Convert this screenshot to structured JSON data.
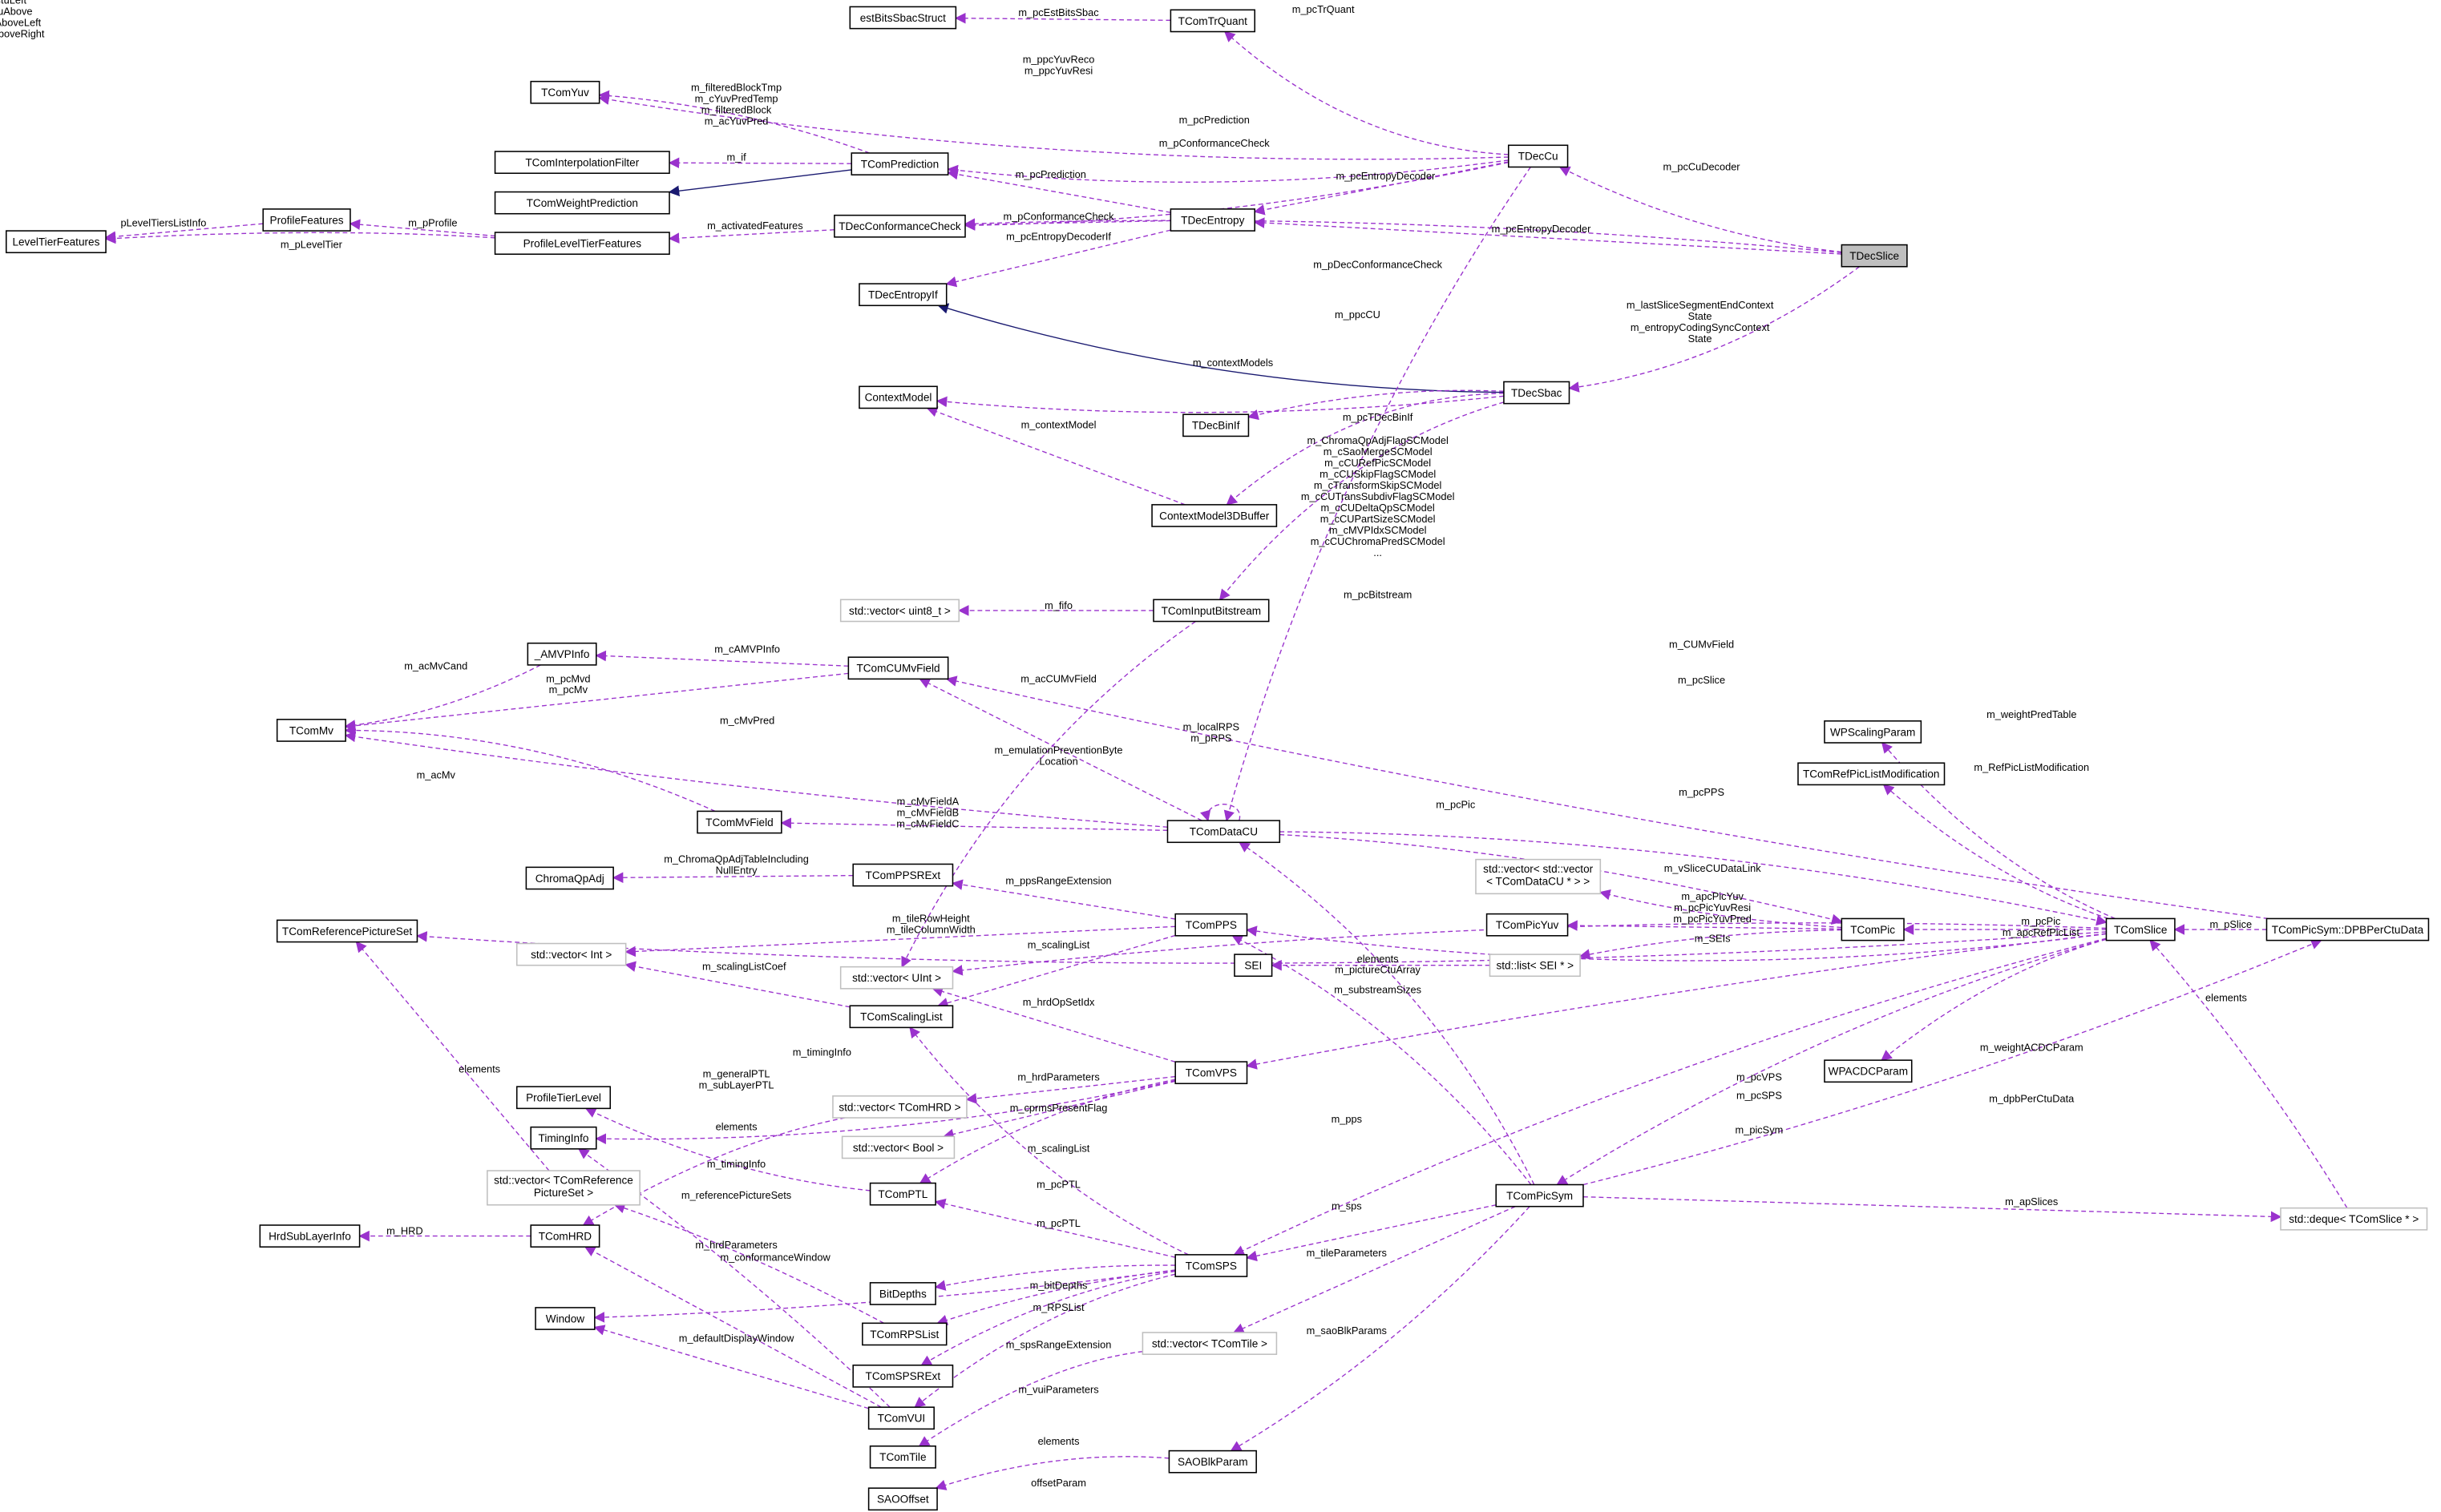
{
  "colors": {
    "member_edge": "#9a32cd",
    "inherit_edge": "#191970",
    "focus_node_fill": "#bfbfbf",
    "external_node_border": "#bfbfbf"
  },
  "nodes": [
    {
      "name": "estBitsSbacStruct"
    },
    {
      "name": "TComTrQuant"
    },
    {
      "name": "TComYuv"
    },
    {
      "name": "TComInterpolationFilter"
    },
    {
      "name": "TComPrediction"
    },
    {
      "name": "TComWeightPrediction"
    },
    {
      "name": "TDecCu"
    },
    {
      "name": "ProfileFeatures"
    },
    {
      "name": "LevelTierFeatures"
    },
    {
      "name": "ProfileLevelTierFeatures"
    },
    {
      "name": "TDecConformanceCheck"
    },
    {
      "name": "TDecEntropy"
    },
    {
      "name": "TDecSlice",
      "focus": true
    },
    {
      "name": "TDecEntropyIf"
    },
    {
      "name": "ContextModel"
    },
    {
      "name": "TDecSbac"
    },
    {
      "name": "TDecBinIf"
    },
    {
      "name": "ContextModel3DBuffer"
    },
    {
      "name": "std::vector< uint8_t >",
      "external": true
    },
    {
      "name": "TComInputBitstream"
    },
    {
      "name": "_AMVPInfo"
    },
    {
      "name": "TComCUMvField"
    },
    {
      "name": "TComMv"
    },
    {
      "name": "WPScalingParam"
    },
    {
      "name": "TComRefPicListModification"
    },
    {
      "name": "TComMvField"
    },
    {
      "name": "TComDataCU"
    },
    {
      "name": "ChromaQpAdj"
    },
    {
      "name": "TComPPSRExt"
    },
    {
      "name": "std::vector< std::vector < TComDataCU * > >",
      "lines": [
        "std::vector< std::vector",
        "< TComDataCU * > >"
      ],
      "external": true
    },
    {
      "name": "TComReferencePictureSet"
    },
    {
      "name": "TComPPS"
    },
    {
      "name": "TComPicYuv"
    },
    {
      "name": "TComPic"
    },
    {
      "name": "TComSlice"
    },
    {
      "name": "TComPicSym::DPBPerCtuData"
    },
    {
      "name": "std::vector< Int >",
      "external": true
    },
    {
      "name": "SEI"
    },
    {
      "name": "std::list< SEI * >",
      "external": true
    },
    {
      "name": "std::vector< UInt >",
      "external": true
    },
    {
      "name": "TComScalingList"
    },
    {
      "name": "WPACDCParam"
    },
    {
      "name": "TComVPS"
    },
    {
      "name": "ProfileTierLevel"
    },
    {
      "name": "std::vector< TComHRD >",
      "external": true
    },
    {
      "name": "TimingInfo"
    },
    {
      "name": "std::vector< Bool >",
      "external": true
    },
    {
      "name": "std::vector< TComReference PictureSet >",
      "lines": [
        "std::vector< TComReference",
        "PictureSet >"
      ],
      "external": true
    },
    {
      "name": "TComPTL"
    },
    {
      "name": "TComPicSym"
    },
    {
      "name": "std::deque< TComSlice * >",
      "external": true
    },
    {
      "name": "HrdSubLayerInfo"
    },
    {
      "name": "TComHRD"
    },
    {
      "name": "TComSPS"
    },
    {
      "name": "BitDepths"
    },
    {
      "name": "Window"
    },
    {
      "name": "TComRPSList"
    },
    {
      "name": "std::vector< TComTile >",
      "external": true
    },
    {
      "name": "TComSPSRExt"
    },
    {
      "name": "TComVUI"
    },
    {
      "name": "TComTile"
    },
    {
      "name": "SAOBlkParam"
    },
    {
      "name": "SAOOffset"
    }
  ],
  "edges": [
    {
      "from": "TComTrQuant",
      "to": "estBitsSbacStruct",
      "label": [
        "m_pcEstBitsSbac"
      ]
    },
    {
      "from": "TDecCu",
      "to": "TComTrQuant",
      "label": [
        "m_pcTrQuant"
      ]
    },
    {
      "from": "TDecCu",
      "to": "TComYuv",
      "label": [
        "m_ppcYuvReco",
        "m_ppcYuvResi"
      ]
    },
    {
      "from": "TComPrediction",
      "to": "TComYuv",
      "label": [
        "m_filteredBlockTmp",
        "m_cYuvPredTemp",
        "m_filteredBlock",
        "m_acYuvPred"
      ]
    },
    {
      "from": "TComPrediction",
      "to": "TComInterpolationFilter",
      "label": [
        "m_if"
      ]
    },
    {
      "from": "TComPrediction",
      "to": "TComWeightPrediction",
      "label": [],
      "inherit": true
    },
    {
      "from": "TDecCu",
      "to": "TComPrediction",
      "label": [
        "m_pcPrediction"
      ]
    },
    {
      "from": "TDecCu",
      "to": "TDecConformanceCheck",
      "label": [
        "m_pConformanceCheck"
      ]
    },
    {
      "from": "TDecCu",
      "to": "TDecEntropy",
      "label": [
        "m_pcEntropyDecoder"
      ]
    },
    {
      "from": "TDecSlice",
      "to": "TDecCu",
      "label": [
        "m_pcCuDecoder"
      ]
    },
    {
      "from": "TDecEntropy",
      "to": "TComPrediction",
      "label": [
        "m_pcPrediction"
      ]
    },
    {
      "from": "TDecEntropy",
      "to": "TDecConformanceCheck",
      "label": [
        "m_pConformanceCheck"
      ]
    },
    {
      "from": "TDecEntropy",
      "to": "TDecEntropyIf",
      "label": [
        "m_pcEntropyDecoderIf"
      ]
    },
    {
      "from": "TDecSlice",
      "to": "TDecEntropy",
      "label": [
        "m_pcEntropyDecoder"
      ]
    },
    {
      "from": "TDecSlice",
      "to": "TDecConformanceCheck",
      "label": [
        "m_pDecConformanceCheck"
      ]
    },
    {
      "from": "TDecSlice",
      "to": "TDecSbac",
      "label": [
        "m_lastSliceSegmentEndContext",
        "State",
        "m_entropyCodingSyncContext",
        "State"
      ]
    },
    {
      "from": "ProfileFeatures",
      "to": "LevelTierFeatures",
      "label": [
        "pLevelTiersListInfo"
      ]
    },
    {
      "from": "ProfileLevelTierFeatures",
      "to": "ProfileFeatures",
      "label": [
        "m_pProfile"
      ]
    },
    {
      "from": "ProfileLevelTierFeatures",
      "to": "LevelTierFeatures",
      "label": [
        "m_pLevelTier"
      ]
    },
    {
      "from": "TDecConformanceCheck",
      "to": "ProfileLevelTierFeatures",
      "label": [
        "m_activatedFeatures"
      ]
    },
    {
      "from": "TDecSbac",
      "to": "TDecEntropyIf",
      "label": [],
      "inherit": true
    },
    {
      "from": "TDecCu",
      "to": "TComDataCU",
      "label": [
        "m_ppcCU"
      ]
    },
    {
      "from": "TDecSbac",
      "to": "ContextModel",
      "label": [
        "m_contextModels"
      ]
    },
    {
      "from": "TDecSbac",
      "to": "TDecBinIf",
      "label": [
        "m_pcTDecBinIf"
      ]
    },
    {
      "from": "ContextModel3DBuffer",
      "to": "ContextModel",
      "label": [
        "m_contextModel"
      ]
    },
    {
      "from": "TDecSbac",
      "to": "ContextModel3DBuffer",
      "label": [
        "m_ChromaQpAdjFlagSCModel",
        "m_cSaoMergeSCModel",
        "m_cCURefPicSCModel",
        "m_cCUSkipFlagSCModel",
        "m_cTransformSkipSCModel",
        "m_cCUTransSubdivFlagSCModel",
        "m_cCUDeltaQpSCModel",
        "m_cCUPartSizeSCModel",
        "m_cMVPIdxSCModel",
        "m_cCUChromaPredSCModel",
        "..."
      ]
    },
    {
      "from": "TDecSbac",
      "to": "TComInputBitstream",
      "label": [
        "m_pcBitstream"
      ]
    },
    {
      "from": "TComInputBitstream",
      "to": "std::vector< uint8_t >",
      "label": [
        "m_fifo"
      ]
    },
    {
      "from": "TComCUMvField",
      "to": "_AMVPInfo",
      "label": [
        "m_cAMVPInfo"
      ]
    },
    {
      "from": "_AMVPInfo",
      "to": "TComMv",
      "label": [
        "m_acMvCand"
      ]
    },
    {
      "from": "TComCUMvField",
      "to": "TComMv",
      "label": [
        "m_pcMvd",
        "m_pcMv"
      ]
    },
    {
      "from": "TComDataCU",
      "to": "TComMv",
      "label": [
        "m_cMvPred"
      ]
    },
    {
      "from": "TComMvField",
      "to": "TComMv",
      "label": [
        "m_acMv"
      ]
    },
    {
      "from": "TComDataCU",
      "to": "TComCUMvField",
      "label": [
        "m_acCUMvField"
      ]
    },
    {
      "from": "TComPicSym::DPBPerCtuData",
      "to": "TComCUMvField",
      "label": [
        "m_CUMvField"
      ]
    },
    {
      "from": "TComDataCU",
      "to": "TComSlice",
      "label": [
        "m_pcSlice"
      ]
    },
    {
      "from": "TComSlice",
      "to": "TComReferencePictureSet",
      "label": [
        "m_localRPS",
        "m_pRPS"
      ]
    },
    {
      "from": "TComInputBitstream",
      "to": "std::vector< UInt >",
      "label": [
        "m_emulationPreventionByte",
        "Location"
      ]
    },
    {
      "from": "TComDataCU",
      "to": "TComDataCU",
      "label": [
        "m_pCtuLeft",
        "m_pCtuAbove",
        "m_pCtuAboveLeft",
        "m_pCtuAboveRight"
      ]
    },
    {
      "from": "TComDataCU",
      "to": "TComMvField",
      "label": [
        "m_cMvFieldA",
        "m_cMvFieldB",
        "m_cMvFieldC"
      ]
    },
    {
      "from": "TComSlice",
      "to": "WPScalingParam",
      "label": [
        "m_weightPredTable"
      ]
    },
    {
      "from": "TComSlice",
      "to": "TComRefPicListModification",
      "label": [
        "m_RefPicListModification"
      ]
    },
    {
      "from": "TComSlice",
      "to": "TComPPS",
      "label": [
        "m_pcPPS"
      ]
    },
    {
      "from": "TComDataCU",
      "to": "TComPic",
      "label": [
        "m_pcPic"
      ]
    },
    {
      "from": "TComPPS",
      "to": "TComPPSRExt",
      "label": [
        "m_ppsRangeExtension"
      ]
    },
    {
      "from": "TComPPSRExt",
      "to": "ChromaQpAdj",
      "label": [
        "m_ChromaQpAdjTableIncluding",
        "NullEntry"
      ]
    },
    {
      "from": "TComPic",
      "to": "std::vector< std::vector < TComDataCU * > >",
      "label": [
        "m_vSliceCUDataLink"
      ]
    },
    {
      "from": "TComPic",
      "to": "TComPicYuv",
      "label": [
        "m_apcPicYuv",
        "m_pcPicYuvResi",
        "m_pcPicYuvPred"
      ]
    },
    {
      "from": "TComSlice",
      "to": "TComPic",
      "label": [
        "m_pcPic",
        "m_apcRefPicList"
      ]
    },
    {
      "from": "TComPicSym::DPBPerCtuData",
      "to": "TComSlice",
      "label": [
        "m_pSlice"
      ]
    },
    {
      "from": "TComPic",
      "to": "std::list< SEI * >",
      "label": [
        "m_SEIs"
      ]
    },
    {
      "from": "std::list< SEI * >",
      "to": "SEI",
      "label": [
        "elements"
      ]
    },
    {
      "from": "TComPicSym",
      "to": "TComDataCU",
      "label": [
        "m_pictureCtuArray"
      ]
    },
    {
      "from": "TComPPS",
      "to": "std::vector< Int >",
      "label": [
        "m_tileRowHeight",
        "m_tileColumnWidth"
      ]
    },
    {
      "from": "TComPPS",
      "to": "TComScalingList",
      "label": [
        "m_scalingList"
      ]
    },
    {
      "from": "TComSlice",
      "to": "std::vector< UInt >",
      "label": [
        "m_substreamSizes"
      ]
    },
    {
      "from": "TComScalingList",
      "to": "std::vector< Int >",
      "label": [
        "m_scalingListCoef"
      ]
    },
    {
      "from": "std::deque< TComSlice * >",
      "to": "TComSlice",
      "label": [
        "elements"
      ]
    },
    {
      "from": "TComVPS",
      "to": "std::vector< UInt >",
      "label": [
        "m_hrdOpSetIdx"
      ]
    },
    {
      "from": "TComVPS",
      "to": "TimingInfo",
      "label": [
        "m_timingInfo"
      ]
    },
    {
      "from": "TComVPS",
      "to": "std::vector< TComHRD >",
      "label": [
        "m_hrdParameters"
      ]
    },
    {
      "from": "TComVPS",
      "to": "std::vector< Bool >",
      "label": [
        "m_cprmsPresentFlag"
      ]
    },
    {
      "from": "TComPTL",
      "to": "ProfileTierLevel",
      "label": [
        "m_generalPTL",
        "m_subLayerPTL"
      ]
    },
    {
      "from": "std::vector< TComHRD >",
      "to": "TComHRD",
      "label": [
        "elements"
      ]
    },
    {
      "from": "TComSlice",
      "to": "TComVPS",
      "label": [
        "m_pcVPS"
      ]
    },
    {
      "from": "TComSlice",
      "to": "WPACDCParam",
      "label": [
        "m_weightACDCParam"
      ]
    },
    {
      "from": "TComSlice",
      "to": "TComSPS",
      "label": [
        "m_pcSPS"
      ]
    },
    {
      "from": "TComSlice",
      "to": "TComPicSym",
      "label": [
        "m_picSym"
      ]
    },
    {
      "from": "TComPicSym",
      "to": "TComPicSym::DPBPerCtuData",
      "label": [
        "m_dpbPerCtuData"
      ]
    },
    {
      "from": "TComPicSym",
      "to": "TComPPS",
      "label": [
        "m_pps"
      ]
    },
    {
      "from": "TComSPS",
      "to": "TComScalingList",
      "label": [
        "m_scalingList"
      ]
    },
    {
      "from": "TComVUI",
      "to": "TimingInfo",
      "label": [
        "m_timingInfo"
      ]
    },
    {
      "from": "TComVPS",
      "to": "TComPTL",
      "label": [
        "m_pcPTL"
      ]
    },
    {
      "from": "std::vector< TComReference PictureSet >",
      "to": "TComReferencePictureSet",
      "label": [
        "elements"
      ]
    },
    {
      "from": "TComRPSList",
      "to": "std::vector< TComReference PictureSet >",
      "label": [
        "m_referencePictureSets"
      ]
    },
    {
      "from": "TComPicSym",
      "to": "TComSPS",
      "label": [
        "m_sps"
      ]
    },
    {
      "from": "TComPicSym",
      "to": "std::deque< TComSlice * >",
      "label": [
        "m_apSlices"
      ]
    },
    {
      "from": "TComSPS",
      "to": "TComPTL",
      "label": [
        "m_pcPTL"
      ]
    },
    {
      "from": "TComHRD",
      "to": "HrdSubLayerInfo",
      "label": [
        "m_HRD"
      ]
    },
    {
      "from": "TComVUI",
      "to": "TComHRD",
      "label": [
        "m_hrdParameters"
      ]
    },
    {
      "from": "TComSPS",
      "to": "Window",
      "label": [
        "m_conformanceWindow"
      ]
    },
    {
      "from": "TComSPS",
      "to": "BitDepths",
      "label": [
        "m_bitDepths"
      ]
    },
    {
      "from": "TComSPS",
      "to": "TComRPSList",
      "label": [
        "m_RPSList"
      ]
    },
    {
      "from": "TComPicSym",
      "to": "std::vector< TComTile >",
      "label": [
        "m_tileParameters"
      ]
    },
    {
      "from": "TComVUI",
      "to": "Window",
      "label": [
        "m_defaultDisplayWindow"
      ]
    },
    {
      "from": "TComSPS",
      "to": "TComSPSRExt",
      "label": [
        "m_spsRangeExtension"
      ]
    },
    {
      "from": "TComPicSym",
      "to": "SAOBlkParam",
      "label": [
        "m_saoBlkParams"
      ]
    },
    {
      "from": "TComSPS",
      "to": "TComVUI",
      "label": [
        "m_vuiParameters"
      ]
    },
    {
      "from": "std::vector< TComTile >",
      "to": "TComTile",
      "label": [
        "elements"
      ]
    },
    {
      "from": "SAOBlkParam",
      "to": "SAOOffset",
      "label": [
        "offsetParam"
      ]
    }
  ]
}
